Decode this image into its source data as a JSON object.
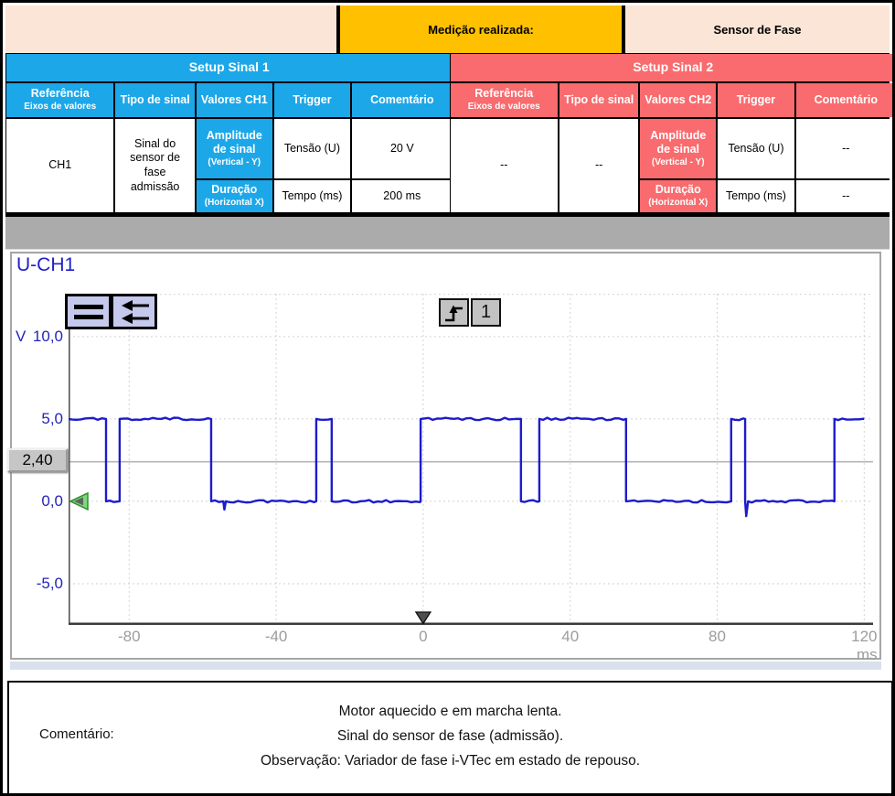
{
  "colors": {
    "header_fill": "#fbe5d6",
    "measurement_fill": "#ffc000",
    "signal1_accent": "#1ca7e8",
    "signal2_accent": "#f96b6e",
    "divider_gray": "#ababab",
    "waveform_blue": "#1c1ccc",
    "axis_label_gray": "#9c9c9c",
    "scope_label_blue": "#2424bb",
    "ground_marker_green": "#7dd87d"
  },
  "top_header": {
    "label": "Medição realizada:",
    "value": "Sensor de Fase"
  },
  "setup1": {
    "title": "Setup Sinal 1",
    "col_reference": "Referência",
    "col_reference_sub": "Eixos de valores",
    "col_signal_type": "Tipo de sinal",
    "col_values": "Valores CH1",
    "col_trigger": "Trigger",
    "col_comment": "Comentário",
    "row_amplitude": "Amplitude de sinal",
    "row_amplitude_sub": "(Vertical - Y)",
    "amplitude_type": "Tensão (U)",
    "amplitude_value": "20 V",
    "row_duration": "Duração",
    "row_duration_sub": "(Horizontal X)",
    "duration_type": "Tempo (ms)",
    "duration_value": "200 ms",
    "trigger_value": "CH1",
    "comment_value": "Sinal do sensor de fase admissão"
  },
  "setup2": {
    "title": "Setup Sinal 2",
    "col_reference": "Referência",
    "col_reference_sub": "Eixos de valores",
    "col_signal_type": "Tipo de sinal",
    "col_values": "Valores CH2",
    "col_trigger": "Trigger",
    "col_comment": "Comentário",
    "row_amplitude": "Amplitude de sinal",
    "row_amplitude_sub": "(Vertical - Y)",
    "amplitude_type": "Tensão (U)",
    "amplitude_value": "--",
    "row_duration": "Duração",
    "row_duration_sub": "(Horizontal X)",
    "duration_type": "Tempo (ms)",
    "duration_value": "--",
    "trigger_value": "--",
    "comment_value": "--"
  },
  "scope": {
    "channel_label": "U-CH1",
    "y_unit": "V",
    "x_unit": "ms",
    "trigger_level_readout": "2,40",
    "trigger_channel_number": "1",
    "icons": {
      "button1": "horizontal-bars-icon",
      "button2": "double-left-arrow-icon",
      "button3": "rising-edge-trigger-icon",
      "ground_marker": "left-triangle-marker",
      "trigger_position": "down-triangle-marker"
    }
  },
  "chart_data": {
    "type": "line",
    "title": "U-CH1",
    "xlabel": "ms",
    "ylabel": "V",
    "grid": "dashed",
    "xlim": [
      -96.5,
      120
    ],
    "ylim": [
      -7.5,
      12.6
    ],
    "x_ticks": [
      -80,
      -40,
      0,
      40,
      80,
      120
    ],
    "y_ticks": [
      10,
      5,
      0,
      -5
    ],
    "y_tick_labels": [
      "10,0",
      "5,0",
      "0,0",
      "-5,0"
    ],
    "trigger_level_v": 2.4,
    "trigger_time_ms": 0,
    "high_level_v": 5.0,
    "low_level_v": 0.0,
    "series": [
      {
        "name": "CH1",
        "color": "#1c1ccc",
        "points": [
          [
            -96.5,
            5
          ],
          [
            -86.3,
            5
          ],
          [
            -86.3,
            0
          ],
          [
            -82.6,
            0
          ],
          [
            -82.6,
            5
          ],
          [
            -57.7,
            5
          ],
          [
            -57.7,
            0
          ],
          [
            -54.4,
            0
          ],
          [
            -54.1,
            -0.5
          ],
          [
            -53.7,
            0
          ],
          [
            -29.1,
            0
          ],
          [
            -29.1,
            5
          ],
          [
            -24.9,
            5
          ],
          [
            -24.9,
            0
          ],
          [
            -0.7,
            0
          ],
          [
            -0.7,
            5
          ],
          [
            26.6,
            5
          ],
          [
            26.6,
            0
          ],
          [
            31.6,
            0
          ],
          [
            31.6,
            5
          ],
          [
            55.2,
            5
          ],
          [
            55.2,
            0
          ],
          [
            83.8,
            0
          ],
          [
            83.8,
            5
          ],
          [
            87.6,
            5
          ],
          [
            87.6,
            0
          ],
          [
            87.9,
            -0.9
          ],
          [
            88.4,
            0
          ],
          [
            111.9,
            0
          ],
          [
            111.9,
            5
          ],
          [
            120,
            5
          ]
        ]
      }
    ]
  },
  "comment_section": {
    "label": "Comentário:",
    "lines": [
      "Motor aquecido e em marcha lenta.",
      "Sinal do sensor de fase (admissão).",
      "Observação: Variador de fase i-VTec em estado de repouso."
    ]
  }
}
